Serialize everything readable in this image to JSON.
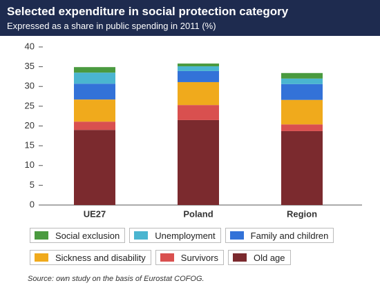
{
  "chart_data": {
    "type": "stacked_bar",
    "title": "Selected expenditure in social protection category",
    "subtitle": "Expressed as a share in public spending in 2011 (%)",
    "categories": [
      "UE27",
      "Poland",
      "Region"
    ],
    "series": [
      {
        "name": "Social exclusion",
        "color": "#4a9a3f",
        "values": [
          1.4,
          0.7,
          1.4
        ]
      },
      {
        "name": "Unemployment",
        "color": "#4ab5d0",
        "values": [
          2.8,
          1.2,
          1.4
        ]
      },
      {
        "name": "Family and children",
        "color": "#3372d8",
        "values": [
          4.0,
          2.8,
          4.0
        ]
      },
      {
        "name": "Sickness and disability",
        "color": "#f0aa1c",
        "values": [
          5.6,
          5.8,
          6.2
        ]
      },
      {
        "name": "Survivors",
        "color": "#d9504f",
        "values": [
          2.1,
          3.8,
          1.7
        ]
      },
      {
        "name": "Old age",
        "color": "#7b2a2e",
        "values": [
          19.0,
          21.5,
          18.7
        ]
      }
    ],
    "ylim": [
      0,
      40
    ],
    "yticks": [
      0,
      5,
      10,
      15,
      20,
      25,
      30,
      35,
      40
    ],
    "source": "Source: own study on the basis of Eurostat COFOG."
  }
}
